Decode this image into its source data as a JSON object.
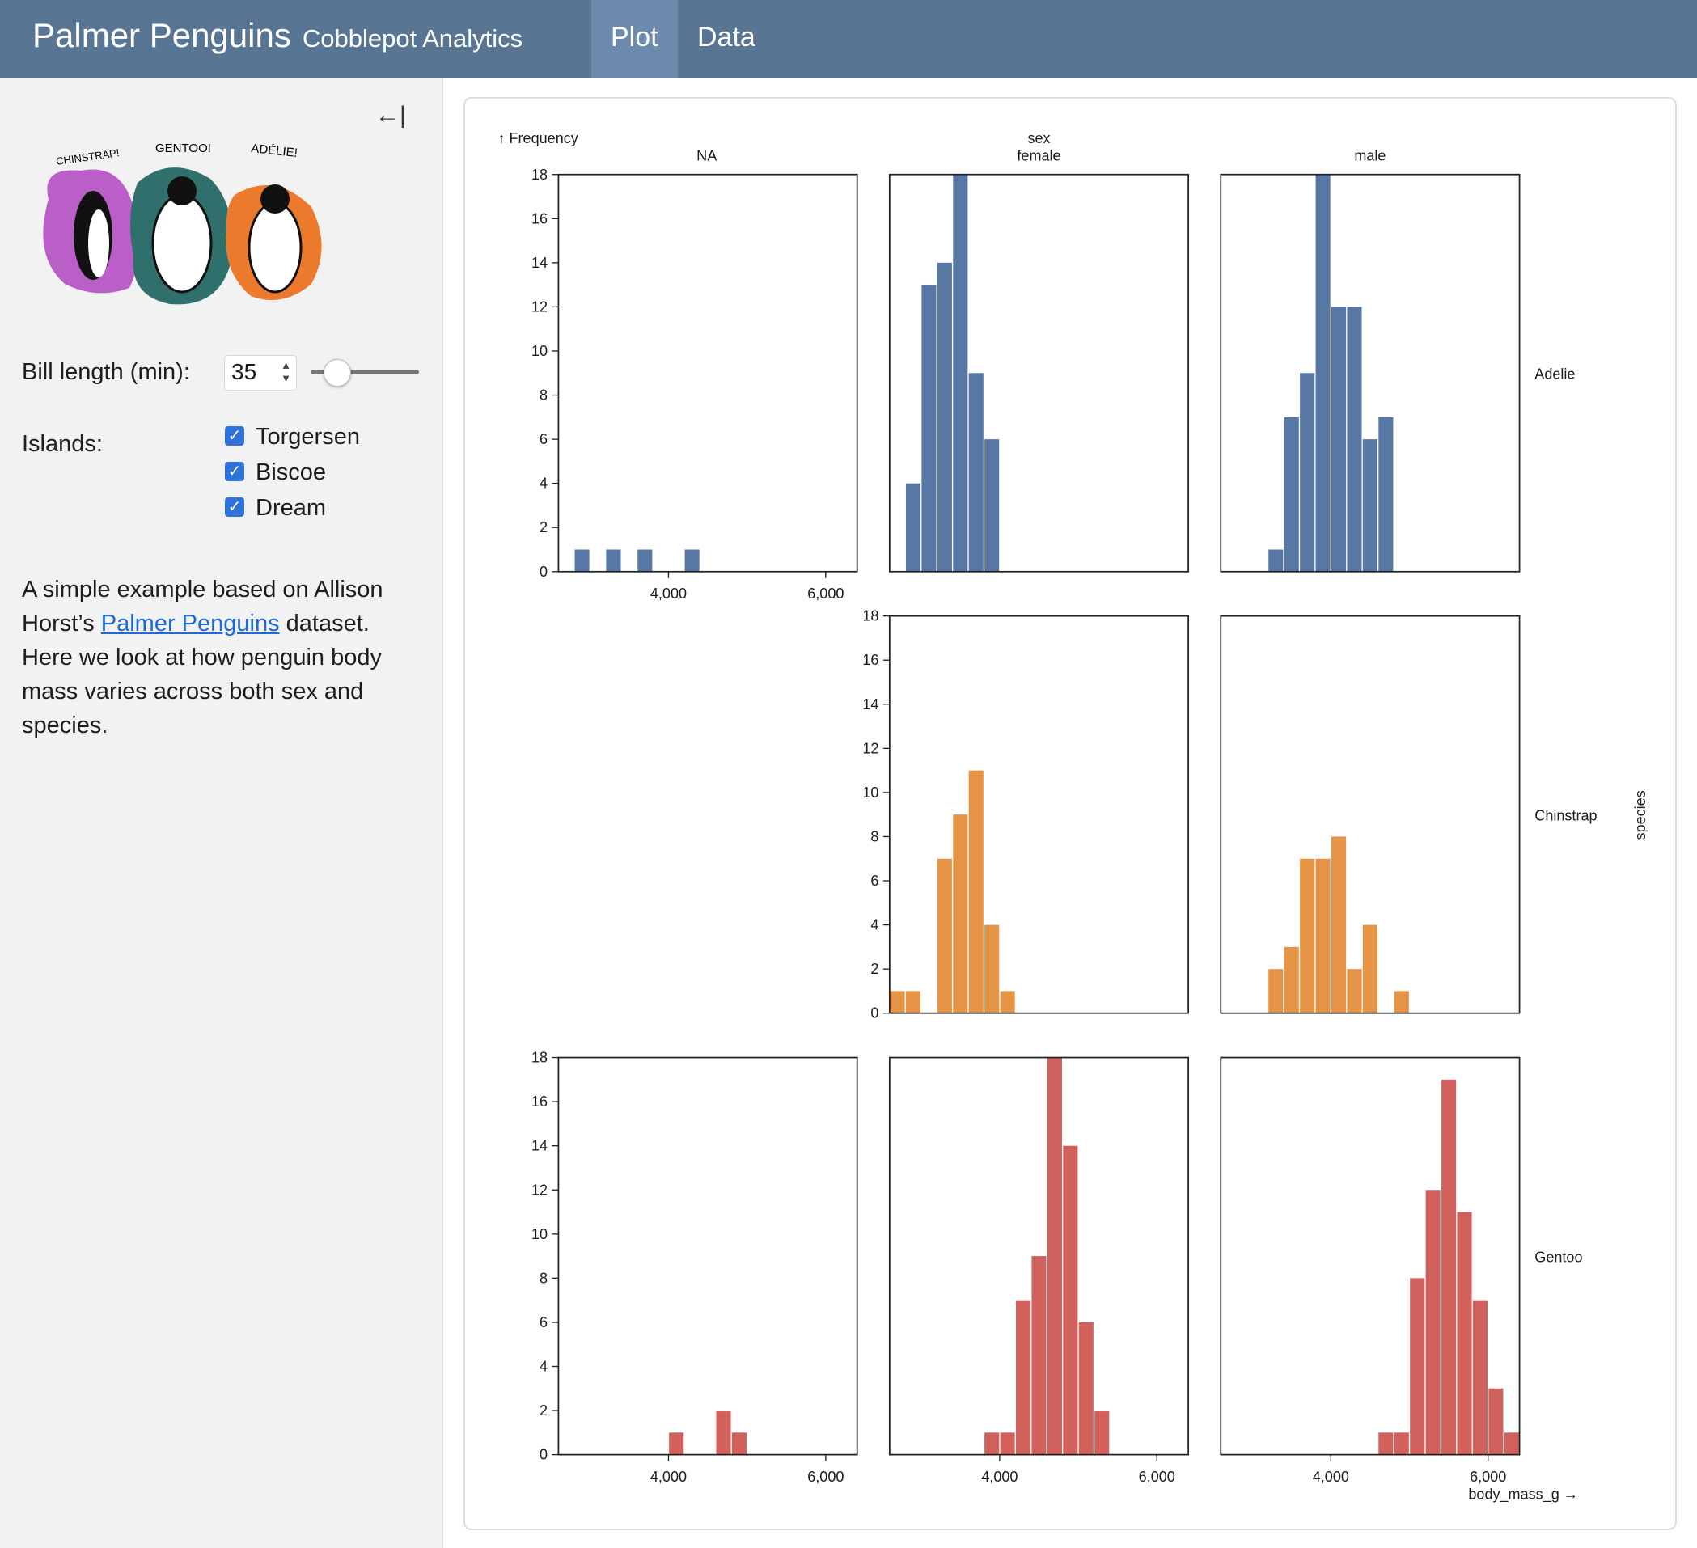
{
  "header": {
    "title": "Palmer Penguins",
    "subtitle": "Cobblepot Analytics",
    "tabs": [
      {
        "label": "Plot",
        "active": true
      },
      {
        "label": "Data",
        "active": false
      }
    ],
    "color": "#587594"
  },
  "sidebar": {
    "collapse_icon": "collapse-left-icon",
    "illustration_text": [
      "CHINSTRAP!",
      "GENTOO!",
      "ADÉLIE!"
    ],
    "bill_length": {
      "label": "Bill length (min):",
      "value": "35"
    },
    "islands": {
      "label": "Islands:",
      "options": [
        {
          "label": "Torgersen",
          "checked": true
        },
        {
          "label": "Biscoe",
          "checked": true
        },
        {
          "label": "Dream",
          "checked": true
        }
      ]
    },
    "description": {
      "before": "A simple example based on Allison Horst’s ",
      "link": "Palmer Penguins",
      "after": " dataset. Here we look at how penguin body mass varies across both sex and species."
    }
  },
  "chart_data": {
    "type": "bar",
    "title": "",
    "xlabel": "body_mass_g →",
    "ylabel": "↑ Frequency",
    "facet_x_label": "sex",
    "facet_y_label": "species",
    "columns": [
      "NA",
      "female",
      "male"
    ],
    "rows": [
      "Adelie",
      "Chinstrap",
      "Gentoo"
    ],
    "xlim": [
      2600,
      6400
    ],
    "ylim": [
      0,
      18
    ],
    "bin_width": 200,
    "x_ticks": [
      "4,000",
      "6,000"
    ],
    "x_tick_values": [
      4000,
      6000
    ],
    "y_ticks": [
      0,
      2,
      4,
      6,
      8,
      10,
      12,
      14,
      16,
      18
    ],
    "colors": {
      "Adelie": "#5778a4",
      "Chinstrap": "#e49444",
      "Gentoo": "#d1615d"
    },
    "panels": [
      {
        "species": "Adelie",
        "sex": "NA",
        "bins": [
          [
            2800,
            1
          ],
          [
            3200,
            1
          ],
          [
            3600,
            1
          ],
          [
            4200,
            1
          ]
        ]
      },
      {
        "species": "Adelie",
        "sex": "female",
        "bins": [
          [
            2800,
            4
          ],
          [
            3000,
            13
          ],
          [
            3200,
            14
          ],
          [
            3400,
            18
          ],
          [
            3600,
            9
          ],
          [
            3800,
            6
          ]
        ]
      },
      {
        "species": "Adelie",
        "sex": "male",
        "bins": [
          [
            3200,
            1
          ],
          [
            3400,
            7
          ],
          [
            3600,
            9
          ],
          [
            3800,
            18
          ],
          [
            4000,
            12
          ],
          [
            4200,
            12
          ],
          [
            4400,
            6
          ],
          [
            4600,
            7
          ]
        ]
      },
      {
        "species": "Chinstrap",
        "sex": "female",
        "bins": [
          [
            2600,
            1
          ],
          [
            2800,
            1
          ],
          [
            3200,
            7
          ],
          [
            3400,
            9
          ],
          [
            3600,
            11
          ],
          [
            3800,
            4
          ],
          [
            4000,
            1
          ]
        ]
      },
      {
        "species": "Chinstrap",
        "sex": "male",
        "bins": [
          [
            3200,
            2
          ],
          [
            3400,
            3
          ],
          [
            3600,
            7
          ],
          [
            3800,
            7
          ],
          [
            4000,
            8
          ],
          [
            4200,
            2
          ],
          [
            4400,
            4
          ],
          [
            4800,
            1
          ]
        ]
      },
      {
        "species": "Gentoo",
        "sex": "NA",
        "bins": [
          [
            4000,
            1
          ],
          [
            4600,
            2
          ],
          [
            4800,
            1
          ]
        ]
      },
      {
        "species": "Gentoo",
        "sex": "female",
        "bins": [
          [
            3800,
            1
          ],
          [
            4000,
            1
          ],
          [
            4200,
            7
          ],
          [
            4400,
            9
          ],
          [
            4600,
            18
          ],
          [
            4800,
            14
          ],
          [
            5000,
            6
          ],
          [
            5200,
            2
          ]
        ]
      },
      {
        "species": "Gentoo",
        "sex": "male",
        "bins": [
          [
            4600,
            1
          ],
          [
            4800,
            1
          ],
          [
            5000,
            8
          ],
          [
            5200,
            12
          ],
          [
            5400,
            17
          ],
          [
            5600,
            11
          ],
          [
            5800,
            7
          ],
          [
            6000,
            3
          ],
          [
            6200,
            1
          ]
        ]
      }
    ]
  }
}
